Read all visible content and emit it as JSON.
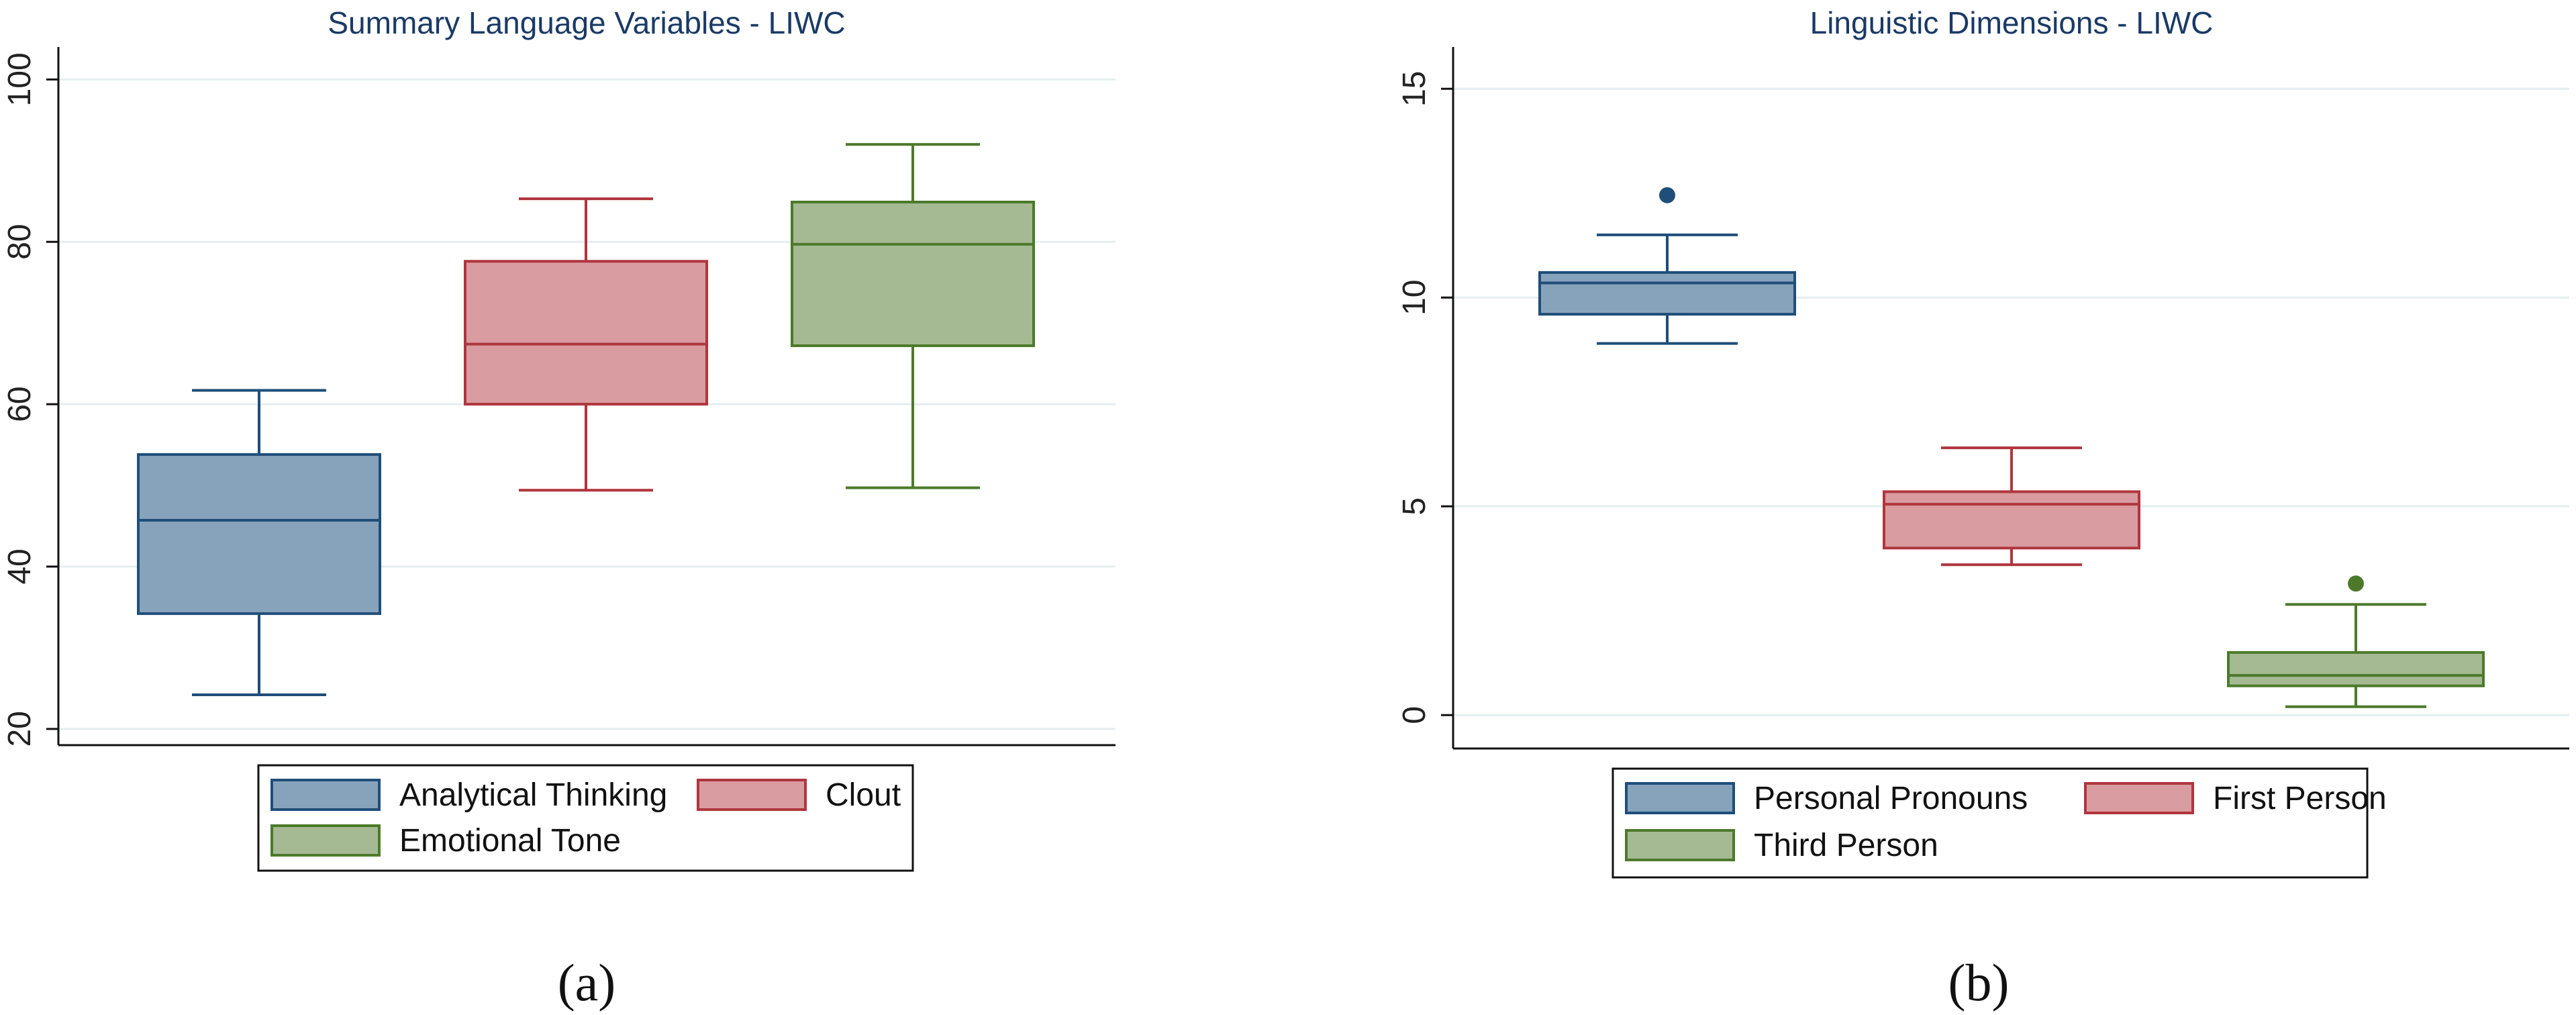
{
  "captions": [
    "(a)",
    "(b)"
  ],
  "caption_letters": [
    "a",
    "b"
  ],
  "chart_data": [
    {
      "type": "box",
      "title": "Summary Language Variables - LIWC",
      "xlabel": "",
      "ylabel": "",
      "ylim": [
        18,
        104
      ],
      "yticks": [
        20,
        40,
        60,
        80,
        100
      ],
      "grid": true,
      "legend_position": "bottom",
      "series": [
        {
          "name": "Analytical Thinking",
          "min": 24.2,
          "q1": 34.2,
          "median": 45.7,
          "q3": 53.8,
          "max": 61.7,
          "outliers": [],
          "fill": "#87a3bb",
          "stroke": "#1f4e79"
        },
        {
          "name": "Clout",
          "min": 49.4,
          "q1": 60.0,
          "median": 67.4,
          "q3": 77.6,
          "max": 85.3,
          "outliers": [],
          "fill": "#d99ca0",
          "stroke": "#b0353d"
        },
        {
          "name": "Emotional Tone",
          "min": 49.7,
          "q1": 67.2,
          "median": 79.7,
          "q3": 84.9,
          "max": 92.0,
          "outliers": [],
          "fill": "#a5b993",
          "stroke": "#4c7a2a"
        }
      ]
    },
    {
      "type": "box",
      "title": "Linguistic Dimensions - LIWC",
      "xlabel": "",
      "ylabel": "",
      "ylim": [
        -0.8,
        16.0
      ],
      "yticks": [
        0,
        5,
        10,
        15
      ],
      "grid": true,
      "legend_position": "bottom",
      "series": [
        {
          "name": "Personal Pronouns",
          "min": 8.9,
          "q1": 9.6,
          "median": 10.35,
          "q3": 10.6,
          "max": 11.5,
          "outliers": [
            12.45
          ],
          "fill": "#87a3bb",
          "stroke": "#1f4e79"
        },
        {
          "name": "First Person",
          "min": 3.6,
          "q1": 4.0,
          "median": 5.05,
          "q3": 5.35,
          "max": 6.4,
          "outliers": [],
          "fill": "#d99ca0",
          "stroke": "#b0353d"
        },
        {
          "name": "Third Person",
          "min": 0.2,
          "q1": 0.7,
          "median": 0.95,
          "q3": 1.5,
          "max": 2.65,
          "outliers": [
            3.15
          ],
          "fill": "#a5b993",
          "stroke": "#4c7a2a"
        }
      ]
    }
  ]
}
